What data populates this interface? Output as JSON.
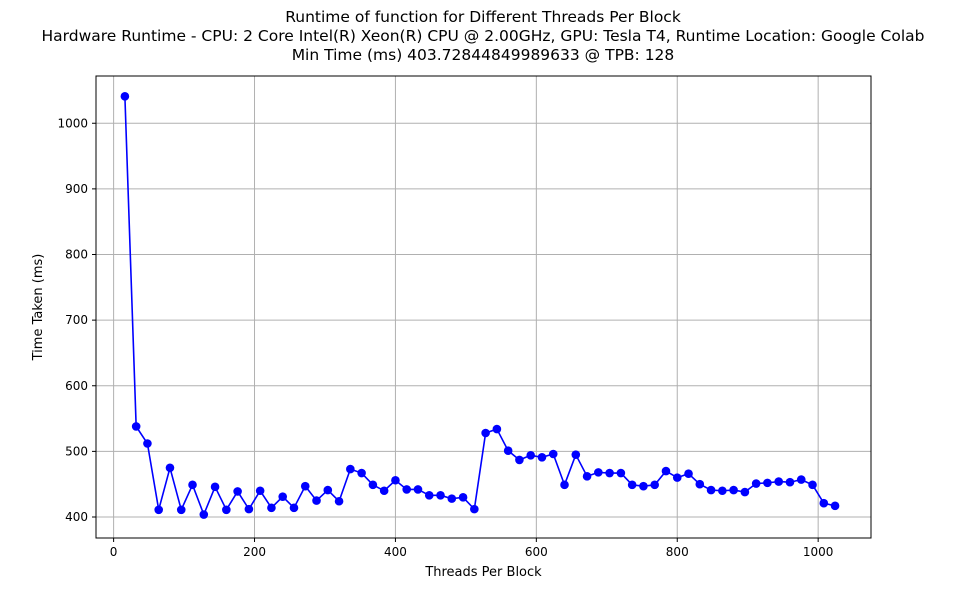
{
  "chart_data": {
    "type": "line",
    "title": "Runtime of function for Different Threads Per Block",
    "subtitle": "Hardware Runtime - CPU: 2 Core Intel(R) Xeon(R) CPU @ 2.00GHz, GPU: Tesla T4, Runtime Location: Google Colab",
    "subtitle2": "Min Time (ms) 403.72844849989633 @ TPB: 128",
    "xlabel": "Threads Per Block",
    "ylabel": "Time Taken (ms)",
    "xlim": [
      -25,
      1075
    ],
    "ylim": [
      368,
      1072
    ],
    "xticks": [
      0,
      200,
      400,
      600,
      800,
      1000
    ],
    "yticks": [
      400,
      500,
      600,
      700,
      800,
      900,
      1000
    ],
    "grid": true,
    "color": "#0000ff",
    "series": [
      {
        "x": [
          16,
          32,
          48,
          64,
          80,
          96,
          112,
          128,
          144,
          160,
          176,
          192,
          208,
          224,
          240,
          256,
          272,
          288,
          304,
          320,
          336,
          352,
          368,
          384,
          400,
          416,
          432,
          448,
          464,
          480,
          496,
          512,
          528,
          544,
          560,
          576,
          592,
          608,
          624,
          640,
          656,
          672,
          688,
          704,
          720,
          736,
          752,
          768,
          784,
          800,
          816,
          832,
          848,
          864,
          880,
          896,
          912,
          928,
          944,
          960,
          976,
          992,
          1008,
          1024
        ],
        "values": [
          1041,
          538,
          512,
          411,
          475,
          411,
          449,
          403.73,
          446,
          411,
          439,
          412,
          440,
          414,
          431,
          414,
          447,
          425,
          441,
          424,
          473,
          467,
          449,
          440,
          456,
          442,
          442,
          433,
          433,
          428,
          430,
          412,
          528,
          534,
          501,
          487,
          494,
          491,
          496,
          449,
          495,
          462,
          468,
          467,
          467,
          449,
          447,
          449,
          470,
          460,
          466,
          450,
          441,
          440,
          441,
          438,
          451,
          452,
          454,
          453,
          457,
          449,
          421,
          417
        ]
      }
    ]
  }
}
